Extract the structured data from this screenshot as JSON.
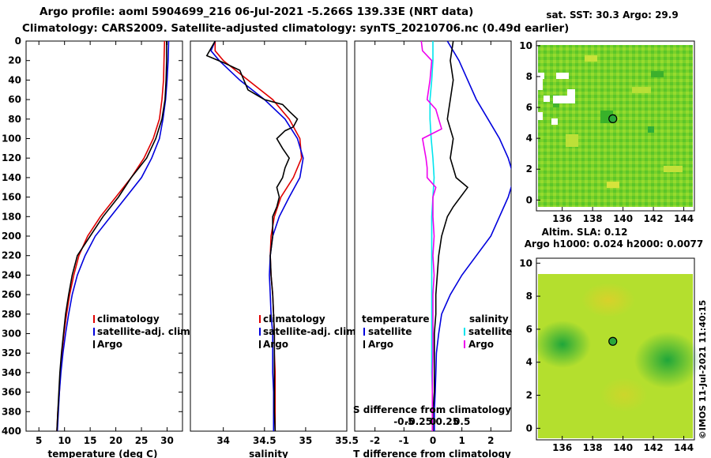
{
  "header": {
    "line1": "Argo profile: aoml 5904699_216 06-Jul-2021 -5.266S 139.33E (NRT data)",
    "line2": "Climatology: CARS2009. Satellite-adjusted climatology: synTS_20210706.nc (0.49d earlier)"
  },
  "colors": {
    "climatology": "#e00000",
    "satellite": "#0000dd",
    "argo": "#000000",
    "argo_t": "#000000",
    "argo_s": "#ee00ee",
    "sat_s": "#00e5ee"
  },
  "depth_ticks": [
    0,
    20,
    40,
    60,
    80,
    100,
    120,
    140,
    160,
    180,
    200,
    220,
    240,
    260,
    280,
    300,
    320,
    340,
    360,
    380,
    400
  ],
  "chart_data": [
    {
      "id": "temperature",
      "type": "line",
      "xlabel": "temperature (deg C)",
      "ylabel": "depth",
      "xlim": [
        2.5,
        33
      ],
      "ylim": [
        0,
        400
      ],
      "xticks": [
        5,
        10,
        15,
        20,
        25,
        30
      ],
      "legend": [
        "climatology",
        "satellite-adj. clim.",
        "Argo"
      ],
      "legend_position": "bottom-right",
      "series": [
        {
          "name": "climatology",
          "color": "#e00000",
          "points": [
            [
              29.5,
              0
            ],
            [
              29.4,
              20
            ],
            [
              29.3,
              40
            ],
            [
              29.0,
              60
            ],
            [
              28.5,
              80
            ],
            [
              27.3,
              100
            ],
            [
              25.5,
              120
            ],
            [
              23.0,
              140
            ],
            [
              20.0,
              160
            ],
            [
              17.0,
              180
            ],
            [
              14.5,
              200
            ],
            [
              12.8,
              220
            ],
            [
              11.8,
              240
            ],
            [
              11.0,
              260
            ],
            [
              10.4,
              280
            ],
            [
              9.9,
              300
            ],
            [
              9.5,
              320
            ],
            [
              9.2,
              340
            ],
            [
              9.0,
              360
            ],
            [
              8.7,
              380
            ],
            [
              8.5,
              400
            ]
          ]
        },
        {
          "name": "satellite-adj. clim.",
          "color": "#0000dd",
          "points": [
            [
              30.3,
              0
            ],
            [
              30.2,
              20
            ],
            [
              30.0,
              40
            ],
            [
              29.7,
              60
            ],
            [
              29.2,
              80
            ],
            [
              28.5,
              100
            ],
            [
              27.0,
              120
            ],
            [
              25.0,
              140
            ],
            [
              22.0,
              160
            ],
            [
              19.0,
              180
            ],
            [
              16.0,
              200
            ],
            [
              14.0,
              220
            ],
            [
              12.5,
              240
            ],
            [
              11.5,
              260
            ],
            [
              10.8,
              280
            ],
            [
              10.2,
              300
            ],
            [
              9.7,
              320
            ],
            [
              9.3,
              340
            ],
            [
              9.0,
              360
            ],
            [
              8.8,
              380
            ],
            [
              8.6,
              400
            ]
          ]
        },
        {
          "name": "Argo",
          "color": "#000000",
          "points": [
            [
              29.9,
              0
            ],
            [
              29.9,
              20
            ],
            [
              29.8,
              40
            ],
            [
              29.6,
              60
            ],
            [
              29.0,
              80
            ],
            [
              27.8,
              100
            ],
            [
              26.0,
              120
            ],
            [
              23.0,
              140
            ],
            [
              20.5,
              160
            ],
            [
              17.5,
              180
            ],
            [
              15.0,
              200
            ],
            [
              12.5,
              220
            ],
            [
              11.5,
              240
            ],
            [
              10.8,
              260
            ],
            [
              10.2,
              280
            ],
            [
              9.8,
              300
            ],
            [
              9.4,
              320
            ],
            [
              9.1,
              340
            ],
            [
              8.9,
              360
            ],
            [
              8.7,
              380
            ],
            [
              8.5,
              400
            ]
          ]
        }
      ]
    },
    {
      "id": "salinity",
      "type": "line",
      "xlabel": "salinity",
      "ylabel": "depth",
      "xlim": [
        33.6,
        35.5
      ],
      "ylim": [
        0,
        400
      ],
      "xticks": [
        34,
        34.5,
        35,
        35.5
      ],
      "legend": [
        "climatology",
        "satellite-adj. clim.",
        "Argo"
      ],
      "legend_position": "bottom-right",
      "series": [
        {
          "name": "climatology",
          "color": "#e00000",
          "points": [
            [
              33.9,
              0
            ],
            [
              33.9,
              10
            ],
            [
              34.0,
              20
            ],
            [
              34.3,
              40
            ],
            [
              34.6,
              60
            ],
            [
              34.8,
              80
            ],
            [
              34.93,
              100
            ],
            [
              34.95,
              120
            ],
            [
              34.85,
              140
            ],
            [
              34.7,
              160
            ],
            [
              34.62,
              180
            ],
            [
              34.58,
              200
            ],
            [
              34.57,
              220
            ],
            [
              34.58,
              240
            ],
            [
              34.6,
              260
            ],
            [
              34.61,
              280
            ],
            [
              34.62,
              300
            ],
            [
              34.62,
              320
            ],
            [
              34.63,
              340
            ],
            [
              34.63,
              360
            ],
            [
              34.63,
              380
            ],
            [
              34.63,
              400
            ]
          ]
        },
        {
          "name": "satellite-adj. clim.",
          "color": "#0000dd",
          "points": [
            [
              33.9,
              0
            ],
            [
              33.85,
              10
            ],
            [
              33.95,
              20
            ],
            [
              34.2,
              40
            ],
            [
              34.5,
              60
            ],
            [
              34.75,
              80
            ],
            [
              34.9,
              100
            ],
            [
              34.97,
              120
            ],
            [
              34.93,
              140
            ],
            [
              34.8,
              160
            ],
            [
              34.68,
              180
            ],
            [
              34.6,
              200
            ],
            [
              34.57,
              220
            ],
            [
              34.56,
              240
            ],
            [
              34.57,
              260
            ],
            [
              34.58,
              280
            ],
            [
              34.6,
              300
            ],
            [
              34.6,
              320
            ],
            [
              34.6,
              340
            ],
            [
              34.61,
              360
            ],
            [
              34.61,
              380
            ],
            [
              34.61,
              400
            ]
          ]
        },
        {
          "name": "Argo",
          "color": "#000000",
          "points": [
            [
              33.9,
              0
            ],
            [
              33.8,
              15
            ],
            [
              34.0,
              22
            ],
            [
              34.2,
              30
            ],
            [
              34.3,
              50
            ],
            [
              34.5,
              60
            ],
            [
              34.72,
              65
            ],
            [
              34.8,
              72
            ],
            [
              34.9,
              80
            ],
            [
              34.85,
              88
            ],
            [
              34.75,
              92
            ],
            [
              34.65,
              100
            ],
            [
              34.72,
              110
            ],
            [
              34.8,
              120
            ],
            [
              34.75,
              130
            ],
            [
              34.72,
              140
            ],
            [
              34.65,
              150
            ],
            [
              34.68,
              160
            ],
            [
              34.65,
              170
            ],
            [
              34.6,
              180
            ],
            [
              34.6,
              200
            ],
            [
              34.57,
              220
            ],
            [
              34.58,
              240
            ],
            [
              34.6,
              260
            ],
            [
              34.61,
              280
            ],
            [
              34.62,
              300
            ],
            [
              34.62,
              320
            ],
            [
              34.62,
              340
            ],
            [
              34.62,
              360
            ],
            [
              34.62,
              380
            ],
            [
              34.63,
              400
            ]
          ]
        }
      ]
    },
    {
      "id": "difference",
      "type": "line",
      "xlabel": "T difference from climatology",
      "top_label": "S difference from climatology",
      "ylabel": "depth",
      "xlim": [
        -2.7,
        2.7
      ],
      "ylim": [
        0,
        400
      ],
      "xticks": [
        -2,
        -1,
        0,
        1,
        2
      ],
      "sticks": [
        -0.5,
        -0.25,
        0,
        0.25,
        0.5
      ],
      "s_scale_note": "T axis -2..2 maps to S axis -1..1",
      "legend_temperature_title": "temperature",
      "legend_salinity_title": "salinity",
      "legend_items": [
        "satellite",
        "Argo"
      ],
      "series": [
        {
          "name": "T satellite",
          "color": "#0000dd",
          "points": [
            [
              0.5,
              0
            ],
            [
              0.9,
              20
            ],
            [
              1.2,
              40
            ],
            [
              1.5,
              60
            ],
            [
              1.9,
              80
            ],
            [
              2.3,
              100
            ],
            [
              2.6,
              120
            ],
            [
              2.8,
              140
            ],
            [
              2.6,
              160
            ],
            [
              2.3,
              180
            ],
            [
              2.0,
              200
            ],
            [
              1.5,
              220
            ],
            [
              1.0,
              240
            ],
            [
              0.6,
              260
            ],
            [
              0.3,
              280
            ],
            [
              0.2,
              300
            ],
            [
              0.12,
              320
            ],
            [
              0.1,
              340
            ],
            [
              0.08,
              360
            ],
            [
              0.05,
              380
            ],
            [
              0.05,
              400
            ]
          ]
        },
        {
          "name": "T Argo",
          "color": "#000000",
          "points": [
            [
              0.7,
              0
            ],
            [
              0.6,
              20
            ],
            [
              0.7,
              40
            ],
            [
              0.6,
              60
            ],
            [
              0.5,
              80
            ],
            [
              0.7,
              100
            ],
            [
              0.6,
              120
            ],
            [
              0.8,
              140
            ],
            [
              1.2,
              150
            ],
            [
              0.7,
              170
            ],
            [
              0.5,
              180
            ],
            [
              0.3,
              200
            ],
            [
              0.2,
              220
            ],
            [
              0.15,
              240
            ],
            [
              0.1,
              260
            ],
            [
              0.1,
              280
            ],
            [
              0.05,
              300
            ],
            [
              0.05,
              320
            ],
            [
              0.05,
              340
            ],
            [
              0.05,
              360
            ],
            [
              0.0,
              380
            ],
            [
              0.0,
              400
            ]
          ]
        },
        {
          "name": "S satellite",
          "color": "#00e5ee",
          "points": [
            [
              0.0,
              0
            ],
            [
              0.0,
              20
            ],
            [
              -0.02,
              40
            ],
            [
              -0.05,
              60
            ],
            [
              -0.05,
              80
            ],
            [
              -0.03,
              100
            ],
            [
              0.0,
              120
            ],
            [
              0.02,
              140
            ],
            [
              0.0,
              160
            ],
            [
              -0.02,
              180
            ],
            [
              -0.02,
              200
            ],
            [
              -0.02,
              220
            ],
            [
              -0.02,
              240
            ],
            [
              -0.02,
              260
            ],
            [
              -0.02,
              280
            ],
            [
              -0.02,
              300
            ],
            [
              -0.02,
              320
            ],
            [
              -0.02,
              340
            ],
            [
              -0.01,
              360
            ],
            [
              -0.01,
              380
            ],
            [
              -0.01,
              400
            ]
          ]
        },
        {
          "name": "S Argo",
          "color": "#ee00ee",
          "points": [
            [
              -0.2,
              0
            ],
            [
              -0.18,
              10
            ],
            [
              -0.02,
              20
            ],
            [
              -0.05,
              40
            ],
            [
              -0.1,
              60
            ],
            [
              0.05,
              70
            ],
            [
              0.1,
              80
            ],
            [
              0.15,
              90
            ],
            [
              -0.18,
              100
            ],
            [
              -0.15,
              110
            ],
            [
              -0.12,
              120
            ],
            [
              -0.1,
              130
            ],
            [
              -0.1,
              140
            ],
            [
              0.05,
              150
            ],
            [
              0.0,
              160
            ],
            [
              0.0,
              180
            ],
            [
              0.02,
              200
            ],
            [
              0.0,
              220
            ],
            [
              0.02,
              240
            ],
            [
              0.0,
              260
            ],
            [
              0.0,
              280
            ],
            [
              0.0,
              300
            ],
            [
              0.0,
              320
            ],
            [
              -0.01,
              340
            ],
            [
              -0.01,
              360
            ],
            [
              -0.01,
              380
            ],
            [
              -0.01,
              400
            ]
          ]
        }
      ]
    },
    {
      "id": "sst_map",
      "type": "heatmap",
      "title": "sat. SST: 30.3 Argo: 29.9",
      "xticks": [
        136,
        138,
        140,
        142,
        144
      ],
      "yticks": [
        0,
        2,
        4,
        6,
        8,
        10
      ],
      "xlim": [
        134.3,
        144.7
      ],
      "ylim": [
        -0.7,
        10.3
      ],
      "marker": {
        "lon": 139.33,
        "lat": 5.266
      }
    },
    {
      "id": "sla_map",
      "type": "heatmap",
      "title_line1": "Altim. SLA: 0.12",
      "title_line2": "Argo h1000: 0.024 h2000: 0.0077",
      "xticks": [
        136,
        138,
        140,
        142,
        144
      ],
      "yticks": [
        0,
        2,
        4,
        6,
        8,
        10
      ],
      "xlim": [
        134.3,
        144.7
      ],
      "ylim": [
        -0.7,
        10.3
      ],
      "marker": {
        "lon": 139.33,
        "lat": 5.266
      }
    }
  ],
  "credit": "©IMOS 11-Jul-2021 11:40:15"
}
